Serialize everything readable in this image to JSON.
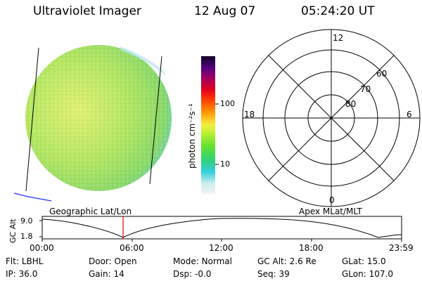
{
  "header": {
    "title": "Ultraviolet Imager",
    "date": "12 Aug 07",
    "time": "05:24:20 UT"
  },
  "colorbar": {
    "unit_label": "photon cm⁻²s⁻¹",
    "ticks": [
      "100",
      "10"
    ]
  },
  "polar": {
    "mlt_labels": {
      "top": "12",
      "left": "18",
      "right": "6",
      "bottom": "0"
    },
    "lat_labels": [
      "60",
      "70",
      "80"
    ]
  },
  "orbit": {
    "left_label": "Geographic Lat/Lon",
    "right_label": "Apex MLat/MLT",
    "axis_label": "GC Alt",
    "y_ticks": [
      "9.0",
      "1.8"
    ],
    "x_ticks": [
      "00:00",
      "06:00",
      "12:00",
      "18:00",
      "23:59"
    ]
  },
  "footer": {
    "rows": [
      [
        {
          "label": "Flt:",
          "value": "LBHL"
        },
        {
          "label": "Door:",
          "value": "Open"
        },
        {
          "label": "Mode:",
          "value": "Normal"
        },
        {
          "label": "GC Alt:",
          "value": "2.6 Re"
        },
        {
          "label": "GLat:",
          "value": "15.0"
        }
      ],
      [
        {
          "label": "IP:",
          "value": "36.0"
        },
        {
          "label": "Gain:",
          "value": "14"
        },
        {
          "label": "Dsp:",
          "value": "-0.0"
        },
        {
          "label": "Seq:",
          "value": "39"
        },
        {
          "label": "GLon:",
          "value": "107.0"
        }
      ]
    ]
  }
}
